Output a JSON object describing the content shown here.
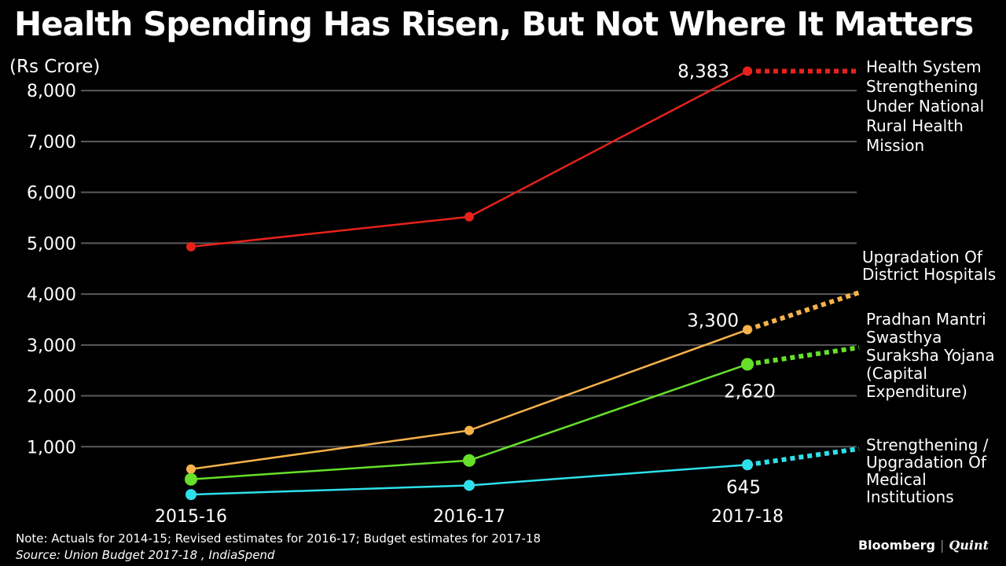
{
  "chart_data": {
    "type": "line",
    "title": "Health Spending Has Risen, But Not Where It Matters",
    "ylabel": "(Rs Crore)",
    "xlabel": "",
    "categories": [
      "2015-16",
      "2016-17",
      "2017-18"
    ],
    "yticks": [
      "1,000",
      "2,000",
      "3,000",
      "4,000",
      "5,000",
      "6,000",
      "7,000",
      "8,000"
    ],
    "ytick_values": [
      1000,
      2000,
      3000,
      4000,
      5000,
      6000,
      7000,
      8000
    ],
    "ylim": [
      0,
      8500
    ],
    "grid": true,
    "series": [
      {
        "name": "Health System Strengthening Under National Rural Health Mission",
        "label_lines": [
          "Health System",
          "Strengthening",
          "Under National",
          "Rural Health",
          "Mission"
        ],
        "color": "#e8221b",
        "values": [
          4930,
          5520,
          8383
        ],
        "end_label": "8,383",
        "projection": 8383
      },
      {
        "name": "Upgradation Of District Hospitals",
        "label_lines": [
          "Upgradation Of",
          "District Hospitals"
        ],
        "color": "#f6b24a",
        "values": [
          560,
          1320,
          3300
        ],
        "end_label": "3,300",
        "projection": 4030
      },
      {
        "name": "Pradhan Mantri Swasthya Suraksha Yojana (Capital Expenditure)",
        "label_lines": [
          "Pradhan Mantri",
          "Swasthya",
          "Suraksha Yojana",
          "(Capital",
          "Expenditure)"
        ],
        "color": "#66e02a",
        "values": [
          360,
          730,
          2620
        ],
        "end_label": "2,620",
        "projection": 2950
      },
      {
        "name": "Strengthening / Upgradation Of Medical Institutions",
        "label_lines": [
          "Strengthening /",
          "Upgradation Of",
          "Medical",
          "Institutions"
        ],
        "color": "#2fe0ea",
        "values": [
          60,
          240,
          645
        ],
        "end_label": "645",
        "projection": 960
      }
    ]
  },
  "footer": {
    "note": "Note: Actuals for 2014-15; Revised estimates for 2016-17; Budget estimates for 2017-18",
    "source": "Source: Union Budget 2017-18 , IndiaSpend"
  },
  "branding": {
    "primary": "Bloomberg",
    "secondary": "Quint"
  }
}
